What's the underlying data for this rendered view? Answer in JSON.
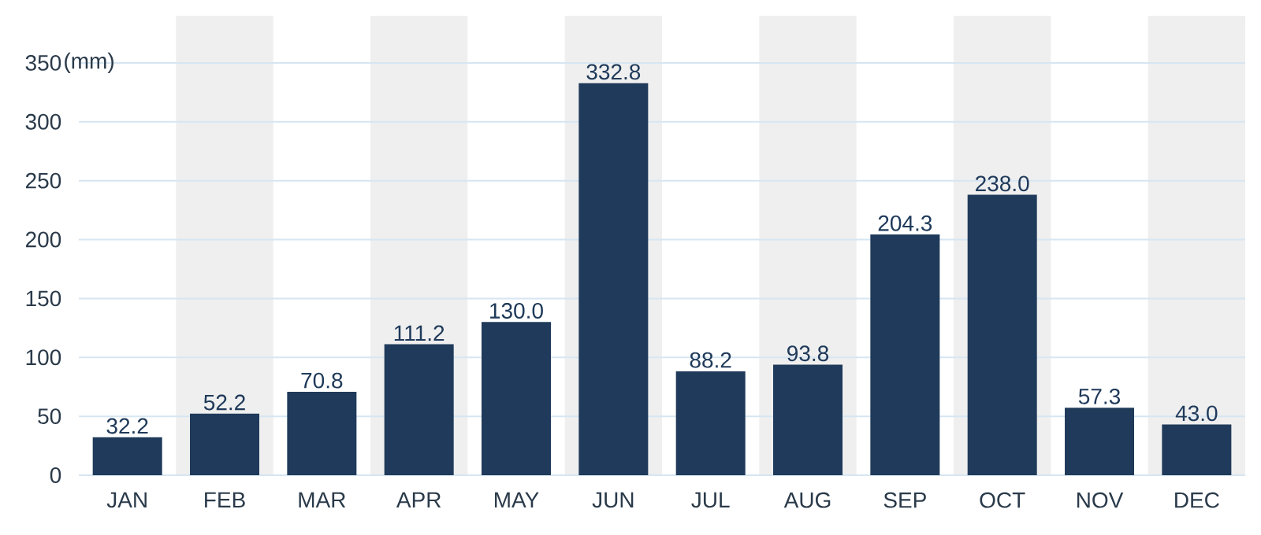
{
  "chart_data": {
    "type": "bar",
    "ylabel": "(mm)",
    "categories": [
      "JAN",
      "FEB",
      "MAR",
      "APR",
      "MAY",
      "JUN",
      "JUL",
      "AUG",
      "SEP",
      "OCT",
      "NOV",
      "DEC"
    ],
    "values": [
      32.2,
      52.2,
      70.8,
      111.2,
      130.0,
      332.8,
      88.2,
      93.8,
      204.3,
      238.0,
      57.3,
      43.0
    ],
    "value_labels": [
      "32.2",
      "52.2",
      "70.8",
      "111.2",
      "130.0",
      "332.8",
      "88.2",
      "93.8",
      "204.3",
      "238.0",
      "57.3",
      "43.0"
    ],
    "color": "#1f3a5a",
    "ylim": [
      0,
      390
    ],
    "yticks": [
      0,
      50,
      100,
      150,
      200,
      250,
      300,
      350
    ],
    "grid": "y",
    "bands": [
      {
        "axis": "x",
        "from": "FEB",
        "to": "FEB",
        "color": "#efefef"
      },
      {
        "axis": "x",
        "from": "APR",
        "to": "APR",
        "color": "#efefef"
      },
      {
        "axis": "x",
        "from": "JUN",
        "to": "JUN",
        "color": "#efefef"
      },
      {
        "axis": "x",
        "from": "AUG",
        "to": "AUG",
        "color": "#efefef"
      },
      {
        "axis": "x",
        "from": "OCT",
        "to": "OCT",
        "color": "#efefef"
      },
      {
        "axis": "x",
        "from": "DEC",
        "to": "DEC",
        "color": "#efefef"
      }
    ]
  }
}
